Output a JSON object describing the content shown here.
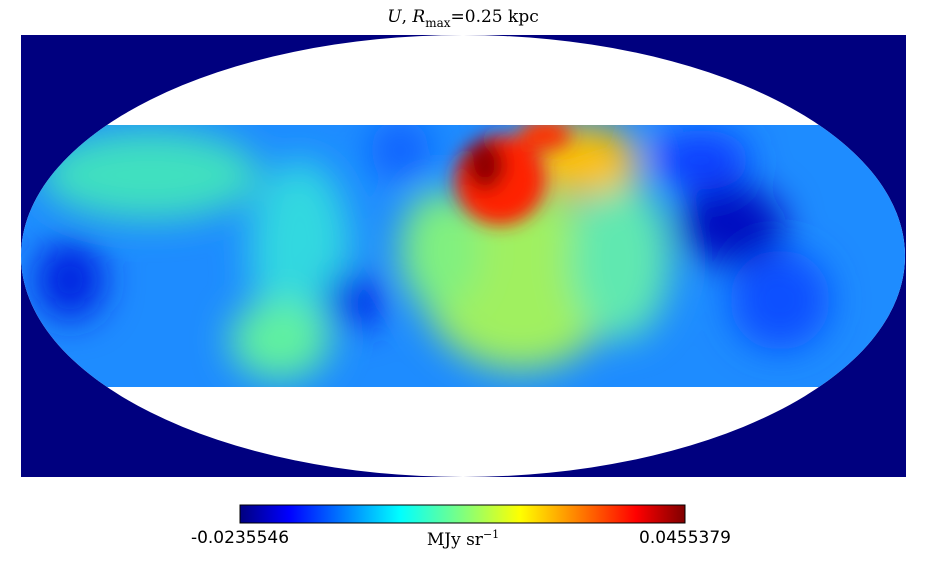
{
  "title_parts": [
    "U",
    ", ",
    "R",
    "max",
    "=0.25 kpc"
  ],
  "colorbar": {
    "min": -0.0235546,
    "max": 0.0455379,
    "unit": "MJy sr",
    "unit_exponent": "−1"
  }
}
